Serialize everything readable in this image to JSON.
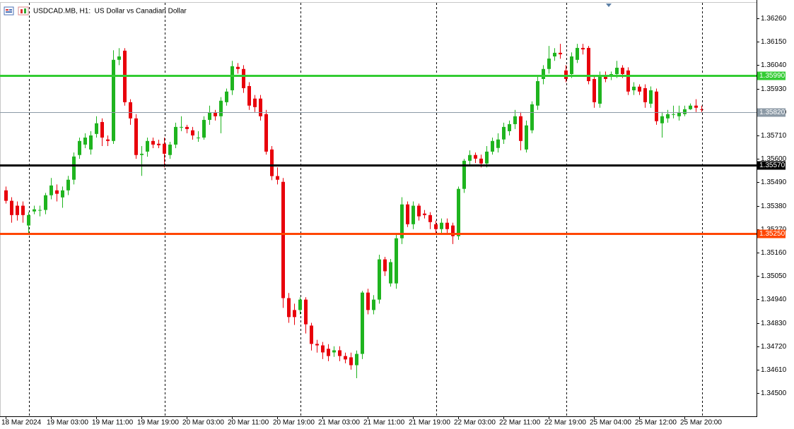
{
  "chart_data": {
    "type": "candlestick",
    "title": "USDCAD.MB, H1:  US Dollar vs Canadian Dollar",
    "x_labels": [
      "18 Mar 2024",
      "19 Mar 03:00",
      "19 Mar 11:00",
      "19 Mar 19:00",
      "20 Mar 03:00",
      "20 Mar 11:00",
      "20 Mar 19:00",
      "21 Mar 03:00",
      "21 Mar 11:00",
      "21 Mar 19:00",
      "22 Mar 03:00",
      "22 Mar 11:00",
      "22 Mar 19:00",
      "25 Mar 04:00",
      "25 Mar 12:00",
      "25 Mar 20:00"
    ],
    "open": [
      1.35452,
      1.35403,
      1.3538,
      1.3538,
      1.35287,
      1.35353,
      1.3536,
      1.3536,
      1.35429,
      1.35452,
      1.35419,
      1.35452,
      1.35502,
      1.35618,
      1.35667,
      1.35644,
      1.35717,
      1.35773,
      1.35691,
      1.35684,
      1.36065,
      1.36108,
      1.35866,
      1.3579,
      1.35618,
      1.35634,
      1.35684,
      1.35671,
      1.35671,
      1.35618,
      1.35667,
      1.3575,
      1.3575,
      1.35734,
      1.357,
      1.357,
      1.35783,
      1.35816,
      1.358,
      1.35866,
      1.35922,
      1.36032,
      1.36022,
      1.35942,
      1.35883,
      1.35883,
      1.3581,
      1.35644,
      1.35519,
      1.35492,
      1.34946,
      1.3489,
      1.3489,
      1.34939,
      1.34817,
      1.34731,
      1.34724,
      1.34708,
      1.34691,
      1.34701,
      1.34674,
      1.34668,
      1.34631,
      1.34684,
      1.34972,
      1.3489,
      1.34939,
      1.35128,
      1.35015,
      1.35015,
      1.35227,
      1.35386,
      1.35293,
      1.3538,
      1.35343,
      1.35336,
      1.35293,
      1.3527,
      1.353,
      1.35287,
      1.35237,
      1.35459,
      1.35591,
      1.35618,
      1.35601,
      1.35578,
      1.35634,
      1.35651,
      1.35691,
      1.3573,
      1.35763,
      1.358,
      1.35644,
      1.35734,
      1.3585,
      1.35975,
      1.36022,
      1.36081,
      1.36098,
      1.36015,
      1.35998,
      1.36065,
      1.36121,
      1.36121,
      1.35975,
      1.35859,
      1.35989,
      1.35989,
      1.35998,
      1.36028,
      1.36015,
      1.35922,
      1.35939,
      1.35932,
      1.35859,
      1.35916,
      1.35767,
      1.3579,
      1.3581,
      1.358,
      1.3581,
      1.35833,
      1.3585,
      1.35833
    ],
    "high": [
      1.3547,
      1.3542,
      1.354,
      1.354,
      1.3535,
      1.3538,
      1.3538,
      1.3544,
      1.3551,
      1.3548,
      1.3547,
      1.3552,
      1.3563,
      1.357,
      1.3572,
      1.3573,
      1.358,
      1.3579,
      1.3571,
      1.3611,
      1.3612,
      1.3612,
      1.3588,
      1.3581,
      1.3566,
      1.357,
      1.357,
      1.3569,
      1.357,
      1.3568,
      1.3577,
      1.358,
      1.3576,
      1.3575,
      1.3573,
      1.358,
      1.3585,
      1.3583,
      1.3589,
      1.3593,
      1.3606,
      1.3605,
      1.3604,
      1.3596,
      1.359,
      1.359,
      1.3583,
      1.3566,
      1.3556,
      1.3551,
      1.3497,
      1.3492,
      1.3495,
      1.3495,
      1.3483,
      1.3475,
      1.3474,
      1.3473,
      1.3472,
      1.3472,
      1.3469,
      1.3469,
      1.347,
      1.3498,
      1.3499,
      1.3496,
      1.3515,
      1.3514,
      1.3513,
      1.3525,
      1.3542,
      1.354,
      1.354,
      1.3539,
      1.3536,
      1.3535,
      1.3531,
      1.3532,
      1.3532,
      1.353,
      1.3547,
      1.356,
      1.3564,
      1.3563,
      1.3562,
      1.3566,
      1.357,
      1.3572,
      1.3577,
      1.3578,
      1.3583,
      1.3582,
      1.3578,
      1.3587,
      1.3599,
      1.3604,
      1.3613,
      1.3612,
      1.3614,
      1.3604,
      1.361,
      1.3614,
      1.3614,
      1.3613,
      1.3599,
      1.3601,
      1.3601,
      1.3601,
      1.3606,
      1.3604,
      1.3603,
      1.3596,
      1.3595,
      1.3595,
      1.3594,
      1.3593,
      1.3582,
      1.3583,
      1.3585,
      1.3585,
      1.3585,
      1.3586,
      1.3588,
      1.3585
    ],
    "low": [
      1.3539,
      1.353,
      1.3531,
      1.353,
      1.3525,
      1.3534,
      1.3533,
      1.3534,
      1.3541,
      1.354,
      1.3537,
      1.3543,
      1.3548,
      1.356,
      1.3565,
      1.3562,
      1.357,
      1.3566,
      1.3566,
      1.3567,
      1.3604,
      1.3585,
      1.3576,
      1.356,
      1.3552,
      1.3561,
      1.3565,
      1.3565,
      1.3556,
      1.356,
      1.3565,
      1.3573,
      1.3572,
      1.3569,
      1.3568,
      1.3569,
      1.3576,
      1.3578,
      1.3572,
      1.3585,
      1.359,
      1.36,
      1.3591,
      1.3583,
      1.3582,
      1.3578,
      1.3562,
      1.355,
      1.3548,
      1.349,
      1.3483,
      1.3482,
      1.3487,
      1.3478,
      1.347,
      1.3469,
      1.3466,
      1.3465,
      1.3467,
      1.3465,
      1.3464,
      1.3461,
      1.3457,
      1.3466,
      1.3487,
      1.3487,
      1.3492,
      1.3505,
      1.35,
      1.3499,
      1.352,
      1.3528,
      1.3527,
      1.3531,
      1.3532,
      1.3527,
      1.3525,
      1.3525,
      1.3525,
      1.352,
      1.3522,
      1.3544,
      1.3557,
      1.3558,
      1.3556,
      1.3556,
      1.3562,
      1.3563,
      1.3567,
      1.3571,
      1.3574,
      1.3564,
      1.3563,
      1.3572,
      1.3583,
      1.3595,
      1.36,
      1.3606,
      1.3607,
      1.3596,
      1.3598,
      1.3605,
      1.3609,
      1.3595,
      1.3584,
      1.3584,
      1.3596,
      1.3597,
      1.3598,
      1.3598,
      1.359,
      1.359,
      1.359,
      1.3584,
      1.3584,
      1.3576,
      1.357,
      1.3577,
      1.3579,
      1.3578,
      1.358,
      1.3583,
      1.3582,
      1.3582
    ],
    "close": [
      1.35403,
      1.35336,
      1.35336,
      1.35336,
      1.35336,
      1.35363,
      1.3536,
      1.35429,
      1.35475,
      1.35436,
      1.35452,
      1.35502,
      1.35611,
      1.35684,
      1.357,
      1.3571,
      1.35767,
      1.357,
      1.35684,
      1.36065,
      1.36081,
      1.35866,
      1.3579,
      1.35618,
      1.35624,
      1.35684,
      1.35667,
      1.35664,
      1.35624,
      1.35667,
      1.3575,
      1.3575,
      1.3574,
      1.3571,
      1.357,
      1.35783,
      1.35816,
      1.358,
      1.35873,
      1.35916,
      1.36035,
      1.36022,
      1.35932,
      1.3585,
      1.35843,
      1.358,
      1.35634,
      1.35519,
      1.35502,
      1.34946,
      1.34857,
      1.34857,
      1.34939,
      1.34823,
      1.34731,
      1.34724,
      1.34691,
      1.34674,
      1.34701,
      1.34674,
      1.34658,
      1.34631,
      1.34684,
      1.34972,
      1.3489,
      1.34939,
      1.35128,
      1.35072,
      1.35115,
      1.35227,
      1.35386,
      1.35293,
      1.3538,
      1.3533,
      1.35336,
      1.35303,
      1.3527,
      1.353,
      1.3527,
      1.35237,
      1.35459,
      1.35591,
      1.35618,
      1.35601,
      1.35578,
      1.35634,
      1.35684,
      1.35691,
      1.3575,
      1.35763,
      1.358,
      1.35684,
      1.35757,
      1.35856,
      1.35965,
      1.36022,
      1.36071,
      1.36098,
      1.36091,
      1.35975,
      1.36081,
      1.36121,
      1.36114,
      1.35965,
      1.35866,
      1.35989,
      1.35975,
      1.35998,
      1.36028,
      1.35998,
      1.35916,
      1.35939,
      1.35916,
      1.35866,
      1.35922,
      1.35777,
      1.358,
      1.3581,
      1.3581,
      1.35816,
      1.35833,
      1.3585,
      1.3584,
      1.3583
    ],
    "up_color": "#1fb41f",
    "down_color": "#e8000b",
    "ylim": [
      1.36346,
      1.34391
    ],
    "yticks": [
      {
        "value": 1.3626,
        "label": "1.36260"
      },
      {
        "value": 1.3615,
        "label": "1.36150"
      },
      {
        "value": 1.3604,
        "label": "1.36040"
      },
      {
        "value": 1.3593,
        "label": "1.35930"
      },
      {
        "value": 1.3582,
        "label": "1.35820"
      },
      {
        "value": 1.3571,
        "label": "1.35710"
      },
      {
        "value": 1.356,
        "label": "1.35600"
      },
      {
        "value": 1.3549,
        "label": "1.35490"
      },
      {
        "value": 1.3538,
        "label": "1.35380"
      },
      {
        "value": 1.3527,
        "label": "1.35270"
      },
      {
        "value": 1.3516,
        "label": "1.35160"
      },
      {
        "value": 1.3505,
        "label": "1.35050"
      },
      {
        "value": 1.3494,
        "label": "1.34940"
      },
      {
        "value": 1.3483,
        "label": "1.34830"
      },
      {
        "value": 1.3472,
        "label": "1.34720"
      },
      {
        "value": 1.3461,
        "label": "1.34610"
      },
      {
        "value": 1.345,
        "label": "1.34500"
      }
    ],
    "levels": [
      {
        "value": 1.3599,
        "label": "1.35990",
        "color": "#33cc33",
        "width": 3
      },
      {
        "value": 1.3582,
        "label": "1.35820",
        "color": "#8c9aa6",
        "width": 1
      },
      {
        "value": 1.3557,
        "label": "1.35570",
        "color": "#000000",
        "width": 3
      },
      {
        "value": 1.3525,
        "label": "1.35250",
        "color": "#ff4500",
        "width": 3
      }
    ],
    "grid": false
  }
}
